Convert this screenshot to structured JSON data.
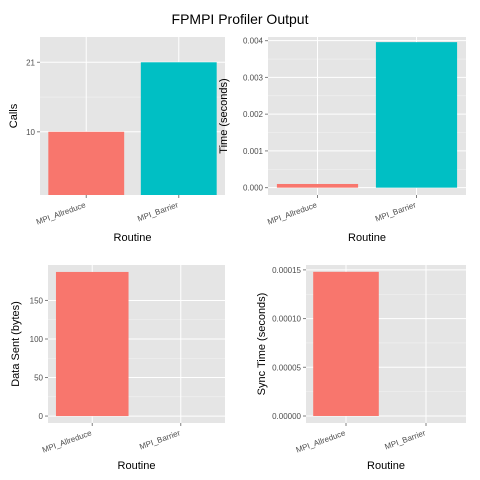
{
  "title": "FPMPI Profiler Output",
  "colors": {
    "panel_bg": "#e5e5e5",
    "grid": "#ffffff",
    "tick_text": "#4d4d4d"
  },
  "chart_data": [
    {
      "type": "bar",
      "categories": [
        "MPI_Allreduce",
        "MPI_Barrier"
      ],
      "values": [
        10,
        21
      ],
      "colors": [
        "#f8766d",
        "#00bfc4"
      ],
      "xlabel": "Routine",
      "ylabel": "Calls",
      "ylim": [
        0,
        25
      ],
      "yticks": [
        10,
        21
      ],
      "ytick_labels": [
        "10",
        "21"
      ],
      "bar_baseline": 0,
      "grid": true
    },
    {
      "type": "bar",
      "categories": [
        "MPI_Allreduce",
        "MPI_Barrier"
      ],
      "values": [
        0.0001,
        0.00396
      ],
      "colors": [
        "#f8766d",
        "#00bfc4"
      ],
      "xlabel": "Routine",
      "ylabel": "Time (seconds)",
      "ylim": [
        -0.0002,
        0.0041
      ],
      "yticks": [
        0,
        0.001,
        0.002,
        0.003,
        0.004
      ],
      "ytick_labels": [
        "0.000",
        "0.001",
        "0.002",
        "0.003",
        "0.004"
      ],
      "bar_baseline": 0,
      "grid": true
    },
    {
      "type": "bar",
      "categories": [
        "MPI_Allreduce",
        "MPI_Barrier"
      ],
      "values": [
        187,
        0
      ],
      "colors": [
        "#f8766d",
        "#00bfc4"
      ],
      "xlabel": "Routine",
      "ylabel": "Data Sent (bytes)",
      "ylim": [
        -9,
        196
      ],
      "yticks": [
        0,
        50,
        100,
        150
      ],
      "ytick_labels": [
        "0",
        "50",
        "100",
        "150"
      ],
      "bar_baseline": 0,
      "grid": true
    },
    {
      "type": "bar",
      "categories": [
        "MPI_Allreduce",
        "MPI_Barrier"
      ],
      "values": [
        0.000148,
        0
      ],
      "colors": [
        "#f8766d",
        "#00bfc4"
      ],
      "xlabel": "Routine",
      "ylabel": "Sync Time (seconds)",
      "ylim": [
        -7.2e-06,
        0.000155
      ],
      "yticks": [
        0,
        5e-05,
        0.0001,
        0.00015
      ],
      "ytick_labels": [
        "0.00000",
        "0.00005",
        "0.00010",
        "0.00015"
      ],
      "bar_baseline": 0,
      "grid": true
    }
  ]
}
